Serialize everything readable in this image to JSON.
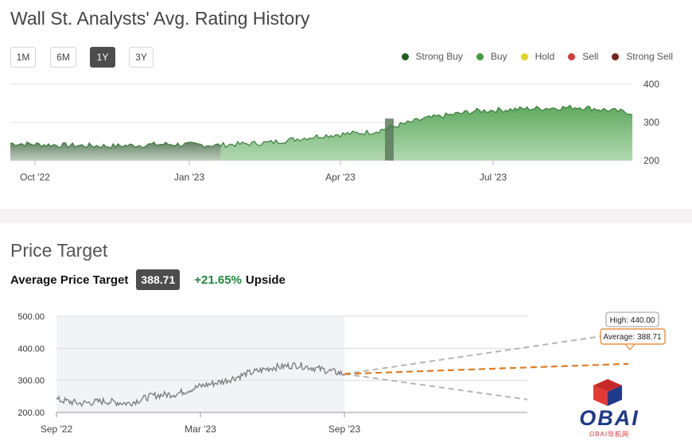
{
  "rating": {
    "title": "Wall St. Analysts' Avg. Rating History",
    "ranges": [
      {
        "label": "1M",
        "active": false
      },
      {
        "label": "6M",
        "active": false
      },
      {
        "label": "1Y",
        "active": true
      },
      {
        "label": "3Y",
        "active": false
      }
    ],
    "legend": [
      {
        "label": "Strong Buy",
        "color": "#1f5c1f"
      },
      {
        "label": "Buy",
        "color": "#3f9b3f"
      },
      {
        "label": "Hold",
        "color": "#e6d21e"
      },
      {
        "label": "Sell",
        "color": "#d13b3b"
      },
      {
        "label": "Strong Sell",
        "color": "#7a1f1f"
      }
    ]
  },
  "price_target": {
    "title": "Price Target",
    "label": "Average Price Target",
    "value": "388.71",
    "upside_pct": "+21.65%",
    "upside_word": "Upside",
    "tooltips": {
      "high": "High: 440.00",
      "average": "Average: 388.71"
    }
  },
  "logo": {
    "text": "OBAI",
    "sub": "OBAI导航网"
  },
  "chart_data": [
    {
      "type": "area",
      "yticks": [
        "400",
        "300",
        "200"
      ],
      "ylim": [
        200,
        400
      ],
      "xticks": [
        "Oct '22",
        "Jan '23",
        "Apr '23",
        "Jul '23"
      ],
      "x": [
        "Sep '22",
        "Oct '22",
        "Nov '22",
        "Dec '22",
        "Jan '23",
        "Feb '23",
        "Mar '23",
        "Apr '23",
        "May '23",
        "Jun '23",
        "Jul '23",
        "Aug '23",
        "Sep '23"
      ],
      "series": [
        {
          "values": [
            245,
            240,
            238,
            243,
            240,
            247,
            265,
            275,
            310,
            330,
            336,
            340,
            325
          ]
        }
      ],
      "colors": {
        "fill": "#5aa65a",
        "line": "#3f8f3f"
      }
    },
    {
      "type": "line",
      "yticks": [
        "500.00",
        "400.00",
        "300.00",
        "200.00"
      ],
      "ylim": [
        200,
        500
      ],
      "xticks": [
        "Sep '22",
        "Mar '23",
        "Sep '23"
      ],
      "x": [
        "Sep '22",
        "Oct '22",
        "Nov '22",
        "Dec '22",
        "Jan '23",
        "Feb '23",
        "Mar '23",
        "Apr '23",
        "May '23",
        "Jun '23",
        "Jul '23",
        "Aug '23",
        "Sep '23"
      ],
      "series": [
        {
          "values": [
            240,
            228,
            235,
            228,
            252,
            258,
            282,
            298,
            322,
            340,
            348,
            335,
            320
          ]
        }
      ],
      "projection": {
        "start": 320,
        "high": 440.0,
        "average": 388.71,
        "low": 265
      }
    }
  ]
}
